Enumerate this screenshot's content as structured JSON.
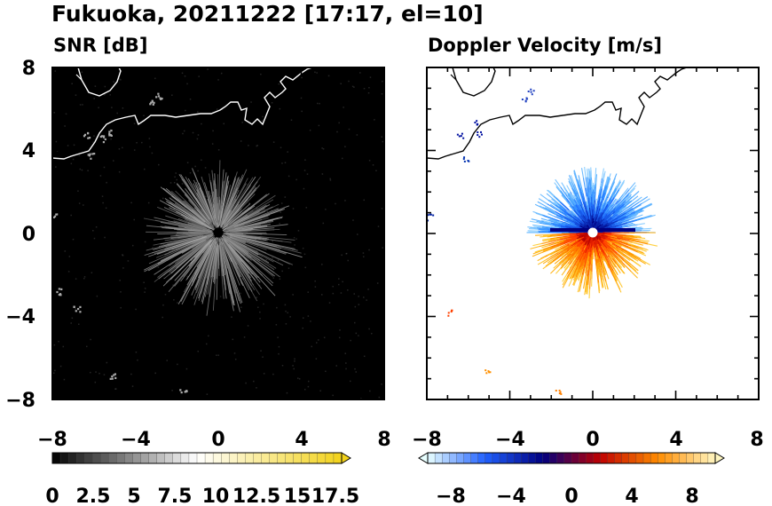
{
  "title": "Fukuoka, 20211222 [17:17, el=10]",
  "chart_data": [
    {
      "type": "heatmap",
      "title": "SNR [dB]",
      "xlim": [
        -8,
        8
      ],
      "ylim": [
        -8,
        8
      ],
      "x_ticks": [
        "−8",
        "−4",
        "0",
        "4",
        "8"
      ],
      "y_ticks": [
        "8",
        "4",
        "0",
        "−4",
        "−8"
      ],
      "radar_center": [
        0,
        0
      ],
      "colorscale": [
        "#000000",
        "#ffffff",
        "#f2d21a"
      ],
      "colorbar": {
        "range": [
          0,
          18
        ],
        "step": 0.5,
        "labels": [
          "0",
          "2.5",
          "5",
          "7.5",
          "10",
          "12.5",
          "15",
          "17.5"
        ],
        "extend": "max"
      }
    },
    {
      "type": "heatmap",
      "title": "Doppler Velocity [m/s]",
      "xlim": [
        -8,
        8
      ],
      "ylim": [
        -8,
        8
      ],
      "x_ticks": [
        "−8",
        "−4",
        "0",
        "4",
        "8"
      ],
      "y_ticks": [],
      "radar_center": [
        0,
        0
      ],
      "colorscale": [
        "#e8ffff",
        "#2060ff",
        "#000080",
        "#c00000",
        "#ff8c00",
        "#fff6c0"
      ],
      "colorbar": {
        "range": [
          -10,
          10
        ],
        "step": 0.5,
        "labels": [
          "−8",
          "−4",
          "0",
          "4",
          "8"
        ],
        "extend": "both"
      }
    }
  ]
}
